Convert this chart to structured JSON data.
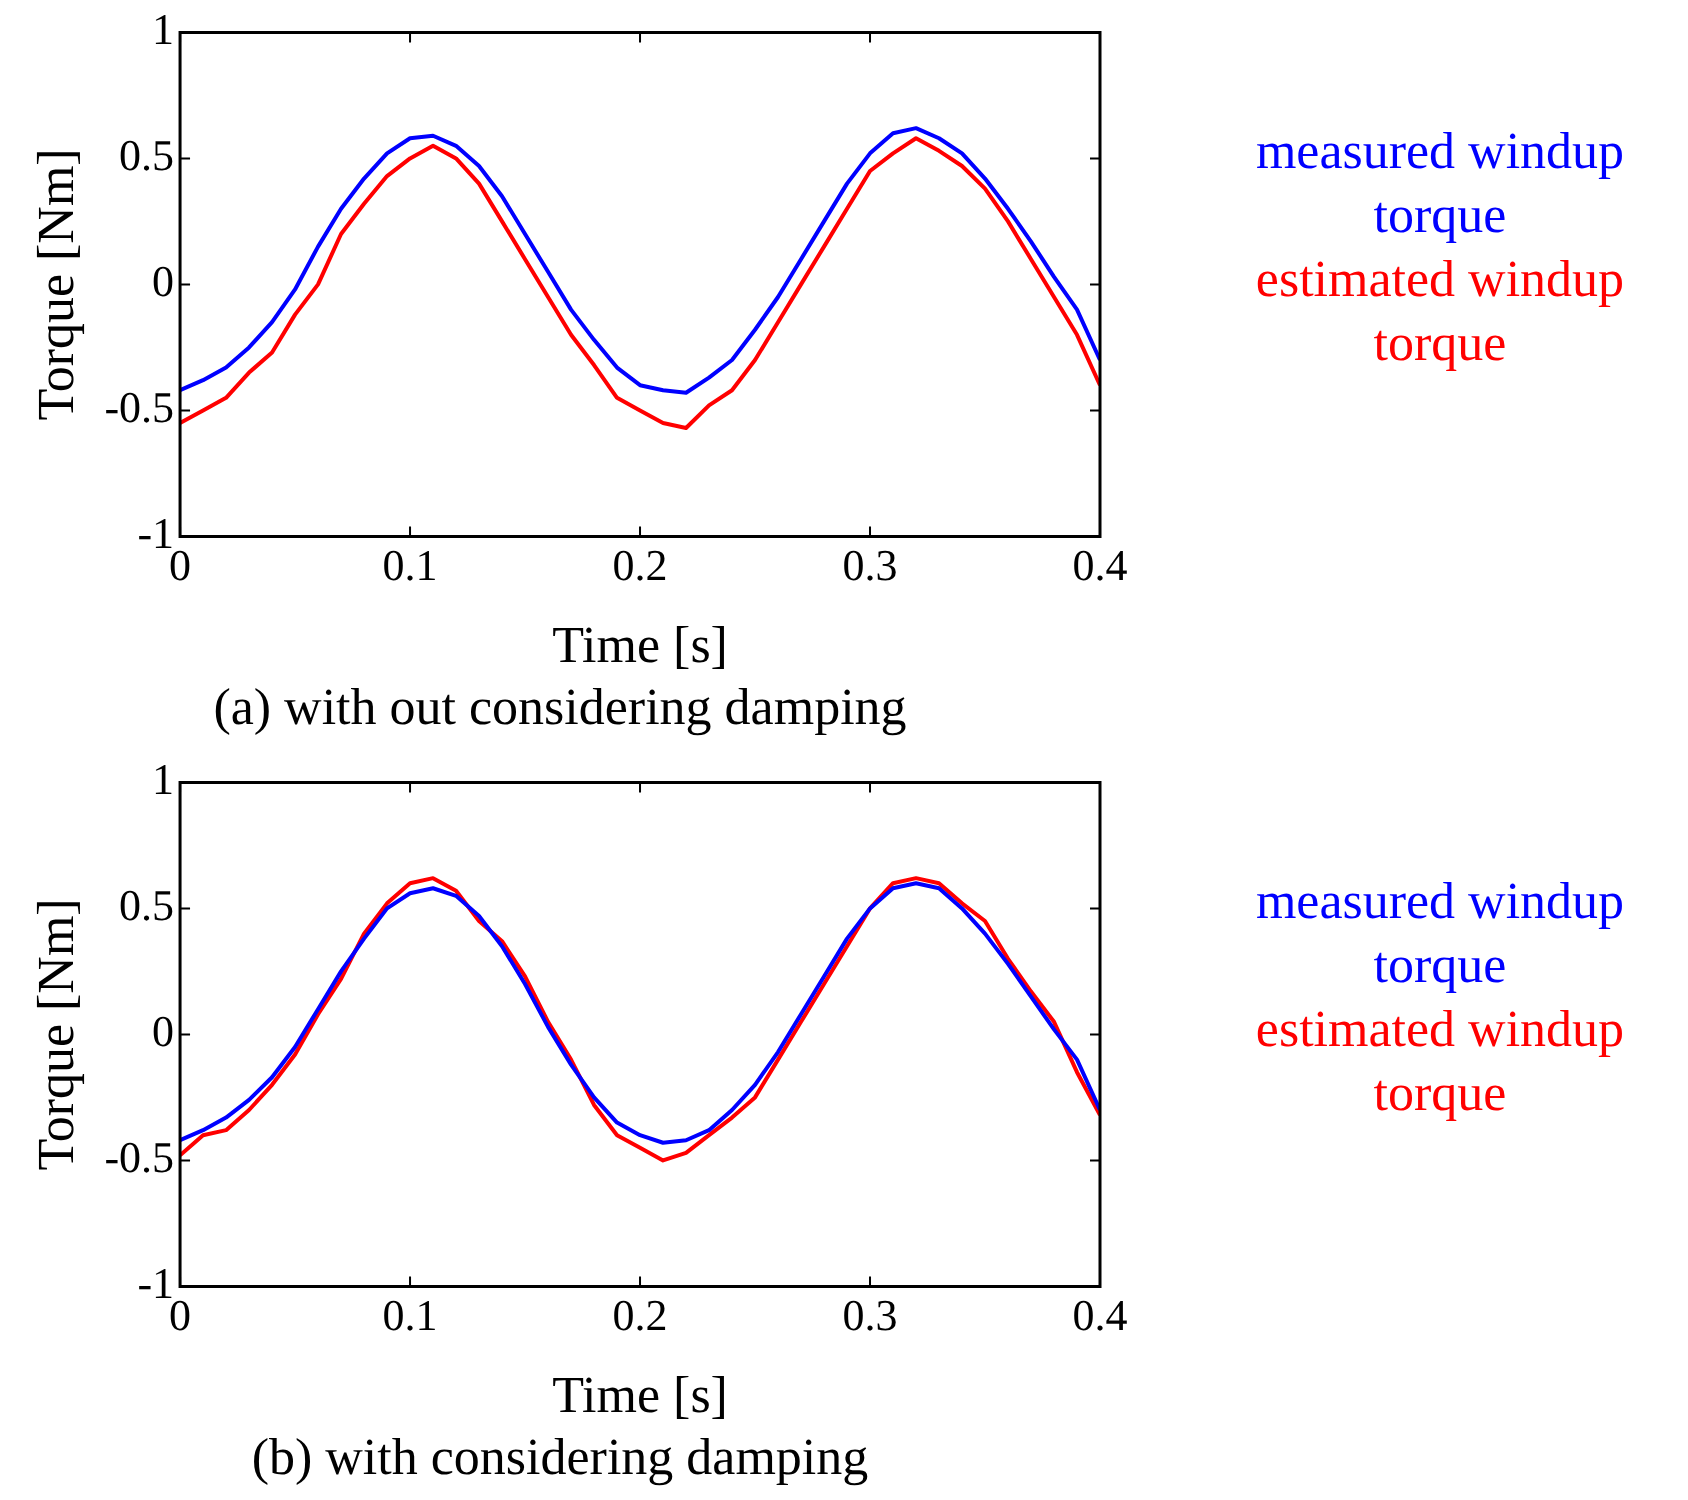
{
  "chart_data": [
    {
      "type": "line",
      "title": "(a) with out considering damping",
      "xlabel": "Time [s]",
      "ylabel": "Torque [Nm]",
      "legend": "right",
      "x": [
        0,
        0.01,
        0.02,
        0.03,
        0.04,
        0.05,
        0.06,
        0.07,
        0.08,
        0.09,
        0.1,
        0.11,
        0.12,
        0.13,
        0.14,
        0.15,
        0.16,
        0.17,
        0.18,
        0.19,
        0.2,
        0.21,
        0.22,
        0.23,
        0.24,
        0.25,
        0.26,
        0.27,
        0.28,
        0.29,
        0.3,
        0.31,
        0.32,
        0.33,
        0.34,
        0.35,
        0.36,
        0.37,
        0.38,
        0.39,
        0.4
      ],
      "xlim": [
        0,
        0.4
      ],
      "xticks": [
        0,
        0.1,
        0.2,
        0.3,
        0.4
      ],
      "ylim": [
        -1,
        1
      ],
      "yticks": [
        -1,
        -0.5,
        0,
        0.5,
        1
      ],
      "series": [
        {
          "name": "measured windup torque",
          "color": "#0000ff",
          "values": [
            -0.42,
            -0.38,
            -0.33,
            -0.25,
            -0.15,
            -0.02,
            0.15,
            0.3,
            0.42,
            0.52,
            0.58,
            0.59,
            0.55,
            0.47,
            0.35,
            0.2,
            0.05,
            -0.1,
            -0.22,
            -0.33,
            -0.4,
            -0.42,
            -0.43,
            -0.37,
            -0.3,
            -0.18,
            -0.05,
            0.1,
            0.25,
            0.4,
            0.52,
            0.6,
            0.62,
            0.58,
            0.52,
            0.42,
            0.3,
            0.17,
            0.03,
            -0.1,
            -0.3
          ]
        },
        {
          "name": "estimated windup torque",
          "color": "#ff0000",
          "values": [
            -0.55,
            -0.5,
            -0.45,
            -0.35,
            -0.27,
            -0.12,
            0.0,
            0.2,
            0.32,
            0.43,
            0.5,
            0.55,
            0.5,
            0.4,
            0.25,
            0.1,
            -0.05,
            -0.2,
            -0.32,
            -0.45,
            -0.5,
            -0.55,
            -0.57,
            -0.48,
            -0.42,
            -0.3,
            -0.15,
            0.0,
            0.15,
            0.3,
            0.45,
            0.52,
            0.58,
            0.53,
            0.47,
            0.38,
            0.25,
            0.1,
            -0.05,
            -0.2,
            -0.4
          ]
        }
      ]
    },
    {
      "type": "line",
      "title": "(b) with considering damping",
      "xlabel": "Time [s]",
      "ylabel": "Torque [Nm]",
      "legend": "right",
      "x": [
        0,
        0.01,
        0.02,
        0.03,
        0.04,
        0.05,
        0.06,
        0.07,
        0.08,
        0.09,
        0.1,
        0.11,
        0.12,
        0.13,
        0.14,
        0.15,
        0.16,
        0.17,
        0.18,
        0.19,
        0.2,
        0.21,
        0.22,
        0.23,
        0.24,
        0.25,
        0.26,
        0.27,
        0.28,
        0.29,
        0.3,
        0.31,
        0.32,
        0.33,
        0.34,
        0.35,
        0.36,
        0.37,
        0.38,
        0.39,
        0.4
      ],
      "xlim": [
        0,
        0.4
      ],
      "xticks": [
        0,
        0.1,
        0.2,
        0.3,
        0.4
      ],
      "ylim": [
        -1,
        1
      ],
      "yticks": [
        -1,
        -0.5,
        0,
        0.5,
        1
      ],
      "series": [
        {
          "name": "measured windup torque",
          "color": "#0000ff",
          "values": [
            -0.42,
            -0.38,
            -0.33,
            -0.26,
            -0.17,
            -0.05,
            0.1,
            0.25,
            0.38,
            0.5,
            0.56,
            0.58,
            0.55,
            0.47,
            0.35,
            0.2,
            0.03,
            -0.12,
            -0.25,
            -0.35,
            -0.4,
            -0.43,
            -0.42,
            -0.38,
            -0.3,
            -0.2,
            -0.07,
            0.08,
            0.23,
            0.38,
            0.5,
            0.58,
            0.6,
            0.58,
            0.5,
            0.4,
            0.28,
            0.15,
            0.02,
            -0.1,
            -0.3
          ]
        },
        {
          "name": "estimated windup torque",
          "color": "#ff0000",
          "values": [
            -0.48,
            -0.4,
            -0.38,
            -0.3,
            -0.2,
            -0.08,
            0.08,
            0.22,
            0.4,
            0.52,
            0.6,
            0.62,
            0.57,
            0.45,
            0.37,
            0.23,
            0.05,
            -0.1,
            -0.28,
            -0.4,
            -0.45,
            -0.5,
            -0.47,
            -0.4,
            -0.33,
            -0.25,
            -0.1,
            0.05,
            0.2,
            0.35,
            0.5,
            0.6,
            0.62,
            0.6,
            0.52,
            0.45,
            0.3,
            0.17,
            0.05,
            -0.15,
            -0.32
          ]
        }
      ]
    }
  ]
}
